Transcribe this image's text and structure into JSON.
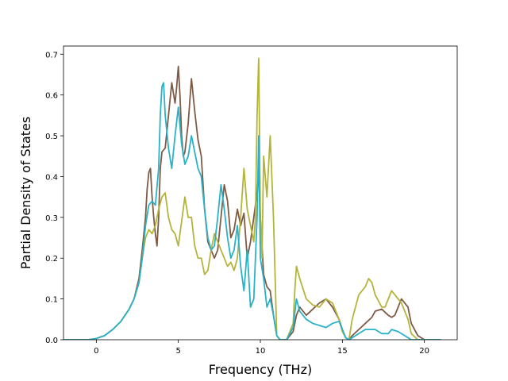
{
  "chart_data": {
    "type": "line",
    "title": "",
    "xlabel": "Frequency (THz)",
    "ylabel": "Partial Density of States",
    "xlim": [
      -2.0,
      22.0
    ],
    "ylim": [
      0.0,
      0.72
    ],
    "xticks": [
      0,
      5,
      10,
      15,
      20
    ],
    "yticks": [
      0.0,
      0.1,
      0.2,
      0.3,
      0.4,
      0.5,
      0.6,
      0.7
    ],
    "xtick_labels": [
      "0",
      "5",
      "10",
      "15",
      "20"
    ],
    "ytick_labels": [
      "0.0",
      "0.1",
      "0.2",
      "0.3",
      "0.4",
      "0.5",
      "0.6",
      "0.7"
    ],
    "grid": false,
    "legend": "none",
    "series": [
      {
        "color": "#7f5a45",
        "x": [
          -2.0,
          -0.5,
          0.0,
          0.5,
          1.0,
          1.5,
          2.0,
          2.3,
          2.6,
          2.8,
          3.0,
          3.1,
          3.2,
          3.3,
          3.4,
          3.5,
          3.6,
          3.7,
          3.8,
          3.9,
          4.0,
          4.2,
          4.4,
          4.6,
          4.8,
          4.9,
          5.0,
          5.1,
          5.2,
          5.3,
          5.4,
          5.6,
          5.8,
          6.0,
          6.2,
          6.4,
          6.6,
          6.8,
          7.0,
          7.2,
          7.4,
          7.6,
          7.8,
          8.0,
          8.2,
          8.4,
          8.6,
          8.8,
          9.0,
          9.2,
          9.4,
          9.6,
          9.8,
          9.9,
          10.0,
          10.2,
          10.4,
          10.6,
          10.8,
          11.0,
          11.2,
          11.6,
          12.0,
          12.2,
          12.4,
          12.8,
          13.2,
          13.6,
          14.0,
          14.4,
          14.8,
          15.0,
          15.2,
          15.4,
          15.6,
          16.0,
          16.4,
          16.8,
          17.0,
          17.4,
          17.8,
          18.0,
          18.2,
          18.6,
          19.0,
          19.2,
          19.6,
          20.0,
          21.0
        ],
        "y": [
          0.0,
          0.0,
          0.003,
          0.01,
          0.025,
          0.045,
          0.075,
          0.1,
          0.15,
          0.22,
          0.3,
          0.37,
          0.41,
          0.42,
          0.35,
          0.3,
          0.26,
          0.23,
          0.3,
          0.42,
          0.46,
          0.47,
          0.55,
          0.63,
          0.58,
          0.62,
          0.67,
          0.6,
          0.5,
          0.45,
          0.46,
          0.53,
          0.64,
          0.56,
          0.49,
          0.45,
          0.32,
          0.24,
          0.22,
          0.2,
          0.22,
          0.3,
          0.38,
          0.34,
          0.25,
          0.27,
          0.32,
          0.28,
          0.31,
          0.2,
          0.24,
          0.3,
          0.36,
          0.41,
          0.3,
          0.16,
          0.13,
          0.12,
          0.06,
          0.01,
          0.0,
          0.0,
          0.02,
          0.06,
          0.08,
          0.06,
          0.075,
          0.09,
          0.1,
          0.08,
          0.05,
          0.025,
          0.005,
          0.0,
          0.01,
          0.025,
          0.04,
          0.055,
          0.07,
          0.075,
          0.06,
          0.055,
          0.06,
          0.1,
          0.08,
          0.04,
          0.01,
          0.0,
          0.0
        ]
      },
      {
        "color": "#b5b43a",
        "x": [
          -2.0,
          -0.5,
          0.0,
          0.5,
          1.0,
          1.5,
          2.0,
          2.3,
          2.6,
          2.8,
          3.0,
          3.2,
          3.4,
          3.6,
          3.8,
          4.0,
          4.2,
          4.4,
          4.6,
          4.8,
          5.0,
          5.2,
          5.4,
          5.6,
          5.8,
          6.0,
          6.2,
          6.4,
          6.6,
          6.8,
          7.0,
          7.2,
          7.4,
          7.6,
          7.8,
          8.0,
          8.2,
          8.4,
          8.6,
          8.8,
          9.0,
          9.2,
          9.4,
          9.6,
          9.7,
          9.8,
          9.9,
          10.0,
          10.1,
          10.2,
          10.4,
          10.6,
          10.8,
          11.0,
          11.2,
          11.6,
          12.0,
          12.1,
          12.2,
          12.4,
          12.8,
          13.2,
          13.6,
          14.0,
          14.4,
          14.8,
          15.0,
          15.2,
          15.4,
          15.6,
          16.0,
          16.4,
          16.6,
          16.8,
          17.0,
          17.4,
          17.6,
          17.8,
          18.0,
          18.2,
          18.6,
          19.0,
          19.2,
          19.6,
          20.0,
          21.0
        ],
        "y": [
          0.0,
          0.0,
          0.003,
          0.01,
          0.025,
          0.045,
          0.075,
          0.1,
          0.14,
          0.2,
          0.25,
          0.27,
          0.26,
          0.28,
          0.32,
          0.35,
          0.36,
          0.3,
          0.27,
          0.26,
          0.23,
          0.29,
          0.35,
          0.3,
          0.3,
          0.23,
          0.2,
          0.2,
          0.16,
          0.17,
          0.22,
          0.26,
          0.24,
          0.22,
          0.2,
          0.18,
          0.19,
          0.17,
          0.2,
          0.3,
          0.42,
          0.32,
          0.28,
          0.24,
          0.3,
          0.55,
          0.69,
          0.3,
          0.2,
          0.45,
          0.35,
          0.5,
          0.3,
          0.01,
          0.0,
          0.0,
          0.04,
          0.12,
          0.18,
          0.15,
          0.1,
          0.085,
          0.08,
          0.1,
          0.09,
          0.05,
          0.02,
          0.005,
          0.0,
          0.05,
          0.11,
          0.13,
          0.15,
          0.14,
          0.11,
          0.08,
          0.08,
          0.1,
          0.12,
          0.11,
          0.09,
          0.05,
          0.015,
          0.0,
          0.0,
          0.0
        ]
      },
      {
        "color": "#2ab2c8",
        "x": [
          -2.0,
          -0.5,
          0.0,
          0.5,
          1.0,
          1.5,
          2.0,
          2.3,
          2.6,
          2.8,
          3.0,
          3.2,
          3.4,
          3.6,
          3.8,
          3.9,
          4.0,
          4.1,
          4.2,
          4.4,
          4.6,
          4.8,
          5.0,
          5.2,
          5.4,
          5.6,
          5.8,
          6.0,
          6.2,
          6.4,
          6.6,
          6.8,
          7.0,
          7.2,
          7.4,
          7.6,
          7.8,
          8.0,
          8.2,
          8.4,
          8.6,
          8.8,
          9.0,
          9.2,
          9.4,
          9.6,
          9.8,
          9.9,
          10.0,
          10.2,
          10.4,
          10.6,
          10.8,
          11.0,
          11.2,
          11.6,
          12.0,
          12.2,
          12.4,
          12.8,
          13.2,
          13.6,
          14.0,
          14.4,
          14.8,
          15.0,
          15.2,
          15.4,
          15.6,
          16.0,
          16.4,
          16.8,
          17.0,
          17.4,
          17.8,
          18.0,
          18.4,
          19.0,
          19.2,
          19.6,
          20.0,
          21.0
        ],
        "y": [
          0.0,
          0.0,
          0.003,
          0.01,
          0.025,
          0.045,
          0.075,
          0.1,
          0.14,
          0.2,
          0.28,
          0.33,
          0.34,
          0.33,
          0.42,
          0.55,
          0.62,
          0.63,
          0.55,
          0.47,
          0.42,
          0.5,
          0.57,
          0.48,
          0.43,
          0.45,
          0.5,
          0.46,
          0.42,
          0.4,
          0.32,
          0.25,
          0.22,
          0.23,
          0.3,
          0.38,
          0.32,
          0.25,
          0.2,
          0.22,
          0.28,
          0.18,
          0.12,
          0.22,
          0.08,
          0.1,
          0.3,
          0.5,
          0.2,
          0.15,
          0.08,
          0.1,
          0.06,
          0.01,
          0.0,
          0.0,
          0.03,
          0.1,
          0.07,
          0.05,
          0.04,
          0.035,
          0.03,
          0.04,
          0.045,
          0.025,
          0.005,
          0.0,
          0.005,
          0.015,
          0.025,
          0.025,
          0.025,
          0.015,
          0.015,
          0.025,
          0.02,
          0.005,
          0.0,
          0.0,
          0.0,
          0.0
        ]
      }
    ]
  }
}
